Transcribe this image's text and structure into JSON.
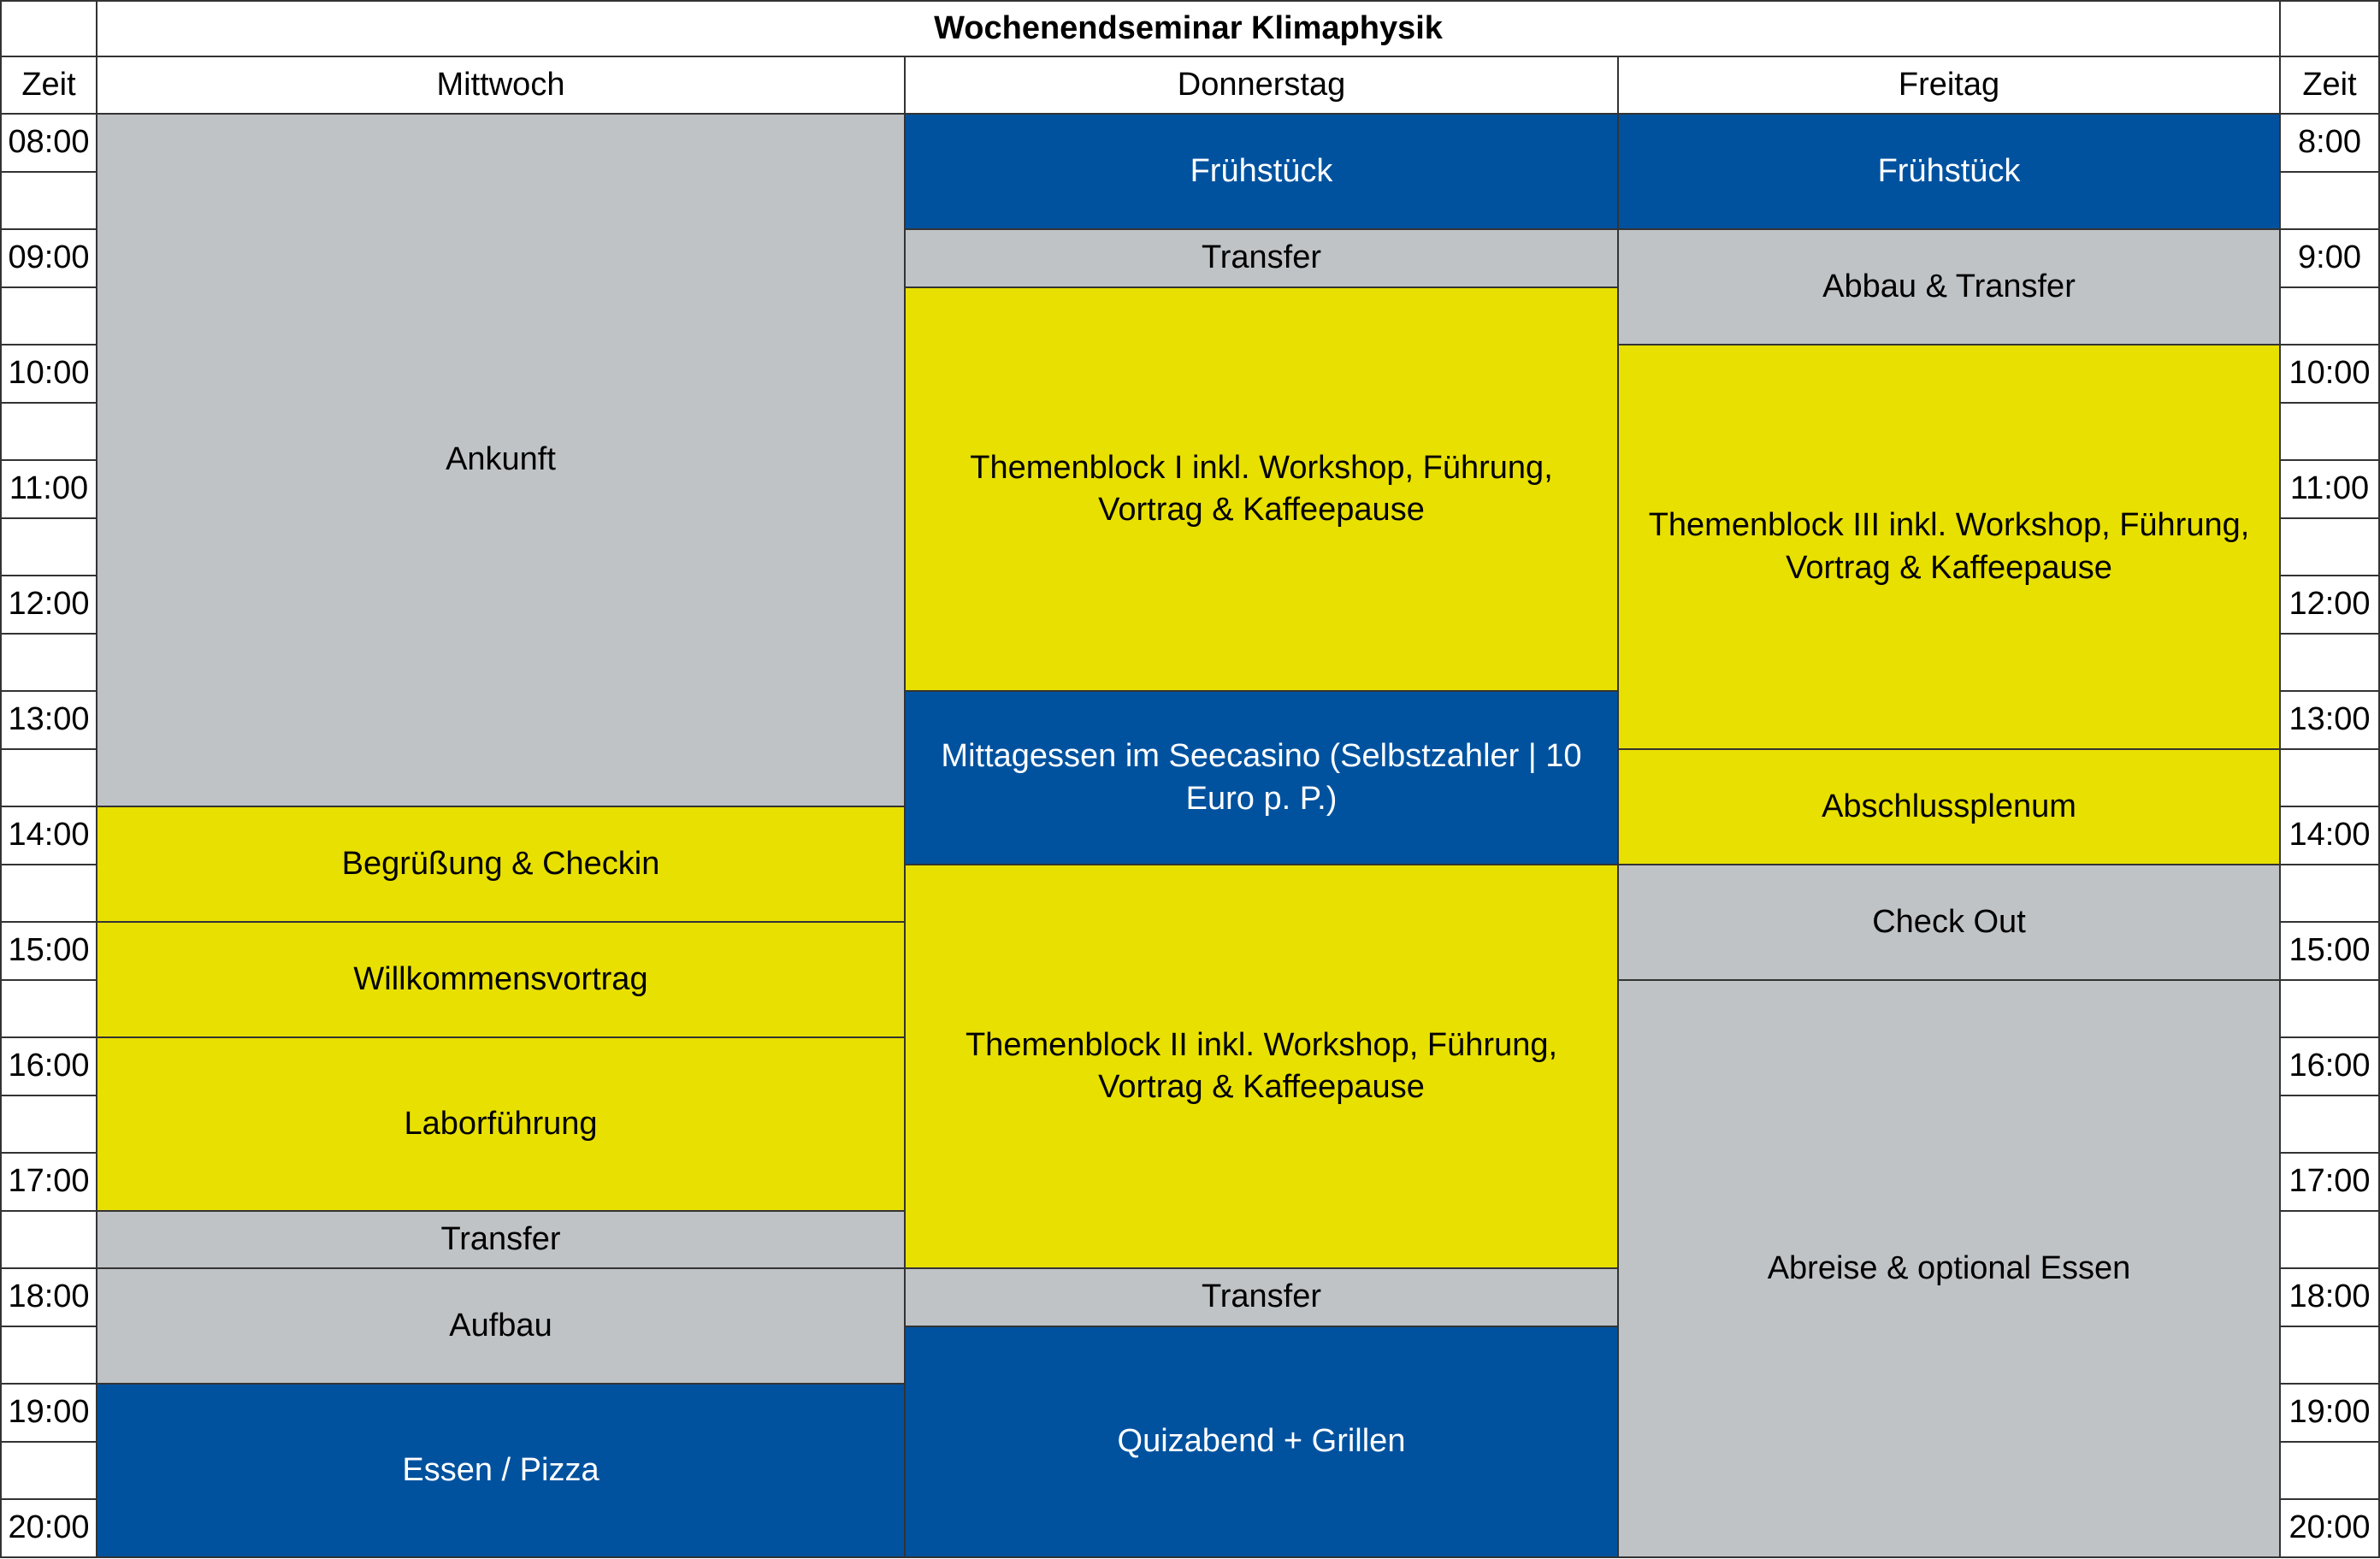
{
  "title": "Wochenendseminar Klimaphysik",
  "headers": {
    "time_left": "Zeit",
    "time_right": "Zeit",
    "days": [
      "Mittwoch",
      "Donnerstag",
      "Freitag"
    ]
  },
  "times_left": [
    "08:00",
    "09:00",
    "10:00",
    "11:00",
    "12:00",
    "13:00",
    "14:00",
    "15:00",
    "16:00",
    "17:00",
    "18:00",
    "19:00",
    "20:00"
  ],
  "times_right": [
    "8:00",
    "9:00",
    "10:00",
    "11:00",
    "12:00",
    "13:00",
    "14:00",
    "15:00",
    "16:00",
    "17:00",
    "18:00",
    "19:00",
    "20:00"
  ],
  "colors": {
    "gray": "#bfc3c6",
    "yellow": "#e8e000",
    "blue": "#00529f"
  },
  "events": [
    {
      "day": 0,
      "start": 0,
      "end": 12,
      "color": "gray",
      "label": "Ankunft"
    },
    {
      "day": 0,
      "start": 12,
      "end": 14,
      "color": "yellow",
      "label": "Begrüßung & Checkin"
    },
    {
      "day": 0,
      "start": 14,
      "end": 16,
      "color": "yellow",
      "label": "Willkommensvortrag"
    },
    {
      "day": 0,
      "start": 16,
      "end": 19,
      "color": "yellow",
      "label": "Laborführung"
    },
    {
      "day": 0,
      "start": 19,
      "end": 20,
      "color": "gray",
      "label": "Transfer"
    },
    {
      "day": 0,
      "start": 20,
      "end": 22,
      "color": "gray",
      "label": "Aufbau"
    },
    {
      "day": 0,
      "start": 22,
      "end": 25,
      "color": "blue",
      "label": "Essen / Pizza"
    },
    {
      "day": 1,
      "start": 0,
      "end": 2,
      "color": "blue",
      "label": "Frühstück"
    },
    {
      "day": 1,
      "start": 2,
      "end": 3,
      "color": "gray",
      "label": "Transfer"
    },
    {
      "day": 1,
      "start": 3,
      "end": 10,
      "color": "yellow",
      "label": "Themenblock I inkl. Workshop, Führung, Vortrag & Kaffeepause"
    },
    {
      "day": 1,
      "start": 10,
      "end": 13,
      "color": "blue",
      "label": "Mittagessen im Seecasino (Selbstzahler | 10 Euro p. P.)"
    },
    {
      "day": 1,
      "start": 13,
      "end": 20,
      "color": "yellow",
      "label": "Themenblock II inkl. Workshop, Führung, Vortrag & Kaffeepause"
    },
    {
      "day": 1,
      "start": 20,
      "end": 21,
      "color": "gray",
      "label": "Transfer"
    },
    {
      "day": 1,
      "start": 21,
      "end": 25,
      "color": "blue",
      "label": "Quizabend + Grillen"
    },
    {
      "day": 2,
      "start": 0,
      "end": 2,
      "color": "blue",
      "label": "Frühstück"
    },
    {
      "day": 2,
      "start": 2,
      "end": 4,
      "color": "gray",
      "label": "Abbau & Transfer"
    },
    {
      "day": 2,
      "start": 4,
      "end": 11,
      "color": "yellow",
      "label": "Themenblock III inkl. Workshop, Führung, Vortrag & Kaffeepause"
    },
    {
      "day": 2,
      "start": 11,
      "end": 13,
      "color": "yellow",
      "label": "Abschlussplenum"
    },
    {
      "day": 2,
      "start": 13,
      "end": 15,
      "color": "gray",
      "label": "Check Out"
    },
    {
      "day": 2,
      "start": 15,
      "end": 25,
      "color": "gray",
      "label": "Abreise & optional Essen"
    }
  ]
}
